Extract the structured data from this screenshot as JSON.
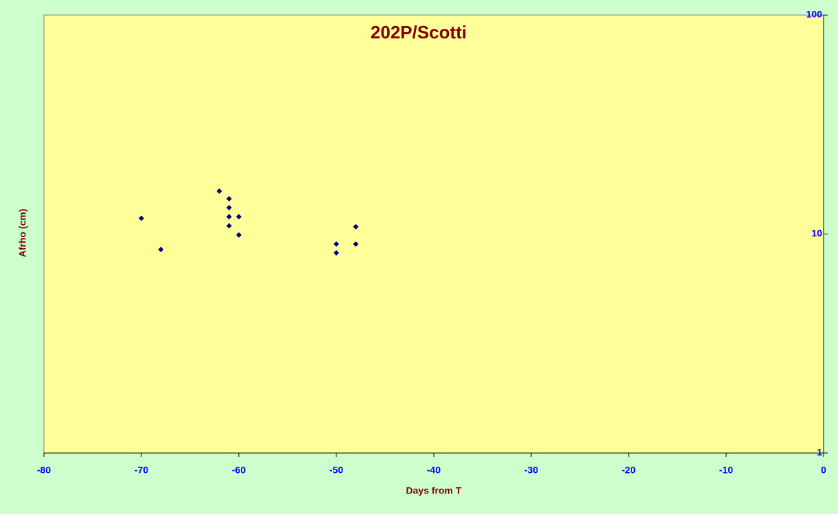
{
  "chart_data": {
    "type": "scatter",
    "title": "202P/Scotti",
    "xlabel": "Days from T",
    "ylabel": "Afrho (cm)",
    "x": [
      -70,
      -68,
      -62,
      -61,
      -61,
      -61,
      -61,
      -60,
      -60,
      -50,
      -50,
      -48,
      -48
    ],
    "series": [
      {
        "color": "#000080",
        "values": [
          11.8,
          8.5,
          15.7,
          14.5,
          13.2,
          12.0,
          10.9,
          12.0,
          9.9,
          9.0,
          8.2,
          10.8,
          9.0
        ]
      }
    ],
    "xlim": [
      -80,
      0
    ],
    "xticks": [
      -80,
      -70,
      -60,
      -50,
      -40,
      -30,
      -20,
      -10,
      0
    ],
    "ylim": [
      1,
      100
    ],
    "yticks": [
      1,
      10,
      100
    ],
    "ylog": true,
    "yaxis_side": "right",
    "plot_color": "#ffff99",
    "grid": false
  }
}
